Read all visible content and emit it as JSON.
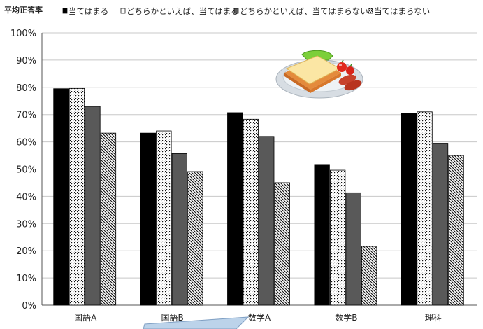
{
  "chart_data": {
    "type": "bar",
    "ylabel": "平均正答率",
    "ylim": [
      0,
      100
    ],
    "yticks": [
      "0%",
      "10%",
      "20%",
      "30%",
      "40%",
      "50%",
      "60%",
      "70%",
      "80%",
      "90%",
      "100%"
    ],
    "grid": true,
    "legend_position": "top",
    "categories": [
      "国語A",
      "国語B",
      "数学A",
      "数学B",
      "理科"
    ],
    "series": [
      {
        "name": "当てはまる",
        "values": [
          79.5,
          63.2,
          70.7,
          51.7,
          70.5
        ],
        "pattern": "solid-black"
      },
      {
        "name": "どちらかといえば、当てはまる",
        "values": [
          79.6,
          64.0,
          68.3,
          49.6,
          71.0
        ],
        "pattern": "dotted"
      },
      {
        "name": "どちらかといえば、当てはまらない",
        "values": [
          73.0,
          55.7,
          62.0,
          41.3,
          59.5
        ],
        "pattern": "solid-gray"
      },
      {
        "name": "当てはまらない",
        "values": [
          63.2,
          49.1,
          45.0,
          21.6,
          55.0
        ],
        "pattern": "diagonal"
      }
    ]
  },
  "decoration": {
    "illustration": "breakfast-plate-icon"
  }
}
